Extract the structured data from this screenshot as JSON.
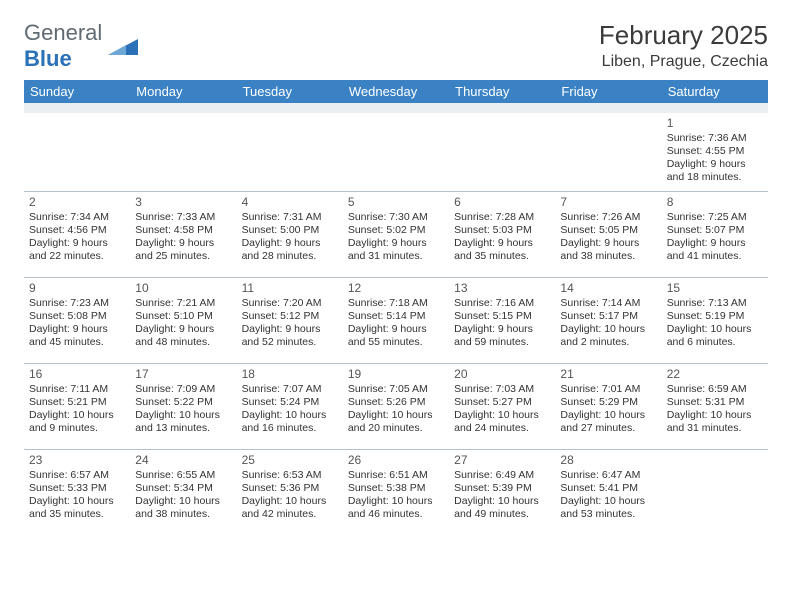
{
  "brand": {
    "first": "General",
    "second": "Blue"
  },
  "title": "February 2025",
  "location": "Liben, Prague, Czechia",
  "colors": {
    "header_bg": "#3a82c4",
    "header_text": "#ffffff",
    "grey_bar": "#eceff1",
    "border": "#b8c0c7",
    "text": "#333333",
    "brand_grey": "#5f6a72",
    "brand_blue": "#2a71b8"
  },
  "day_names": [
    "Sunday",
    "Monday",
    "Tuesday",
    "Wednesday",
    "Thursday",
    "Friday",
    "Saturday"
  ],
  "weeks": [
    [
      null,
      null,
      null,
      null,
      null,
      null,
      {
        "n": "1",
        "sunrise": "7:36 AM",
        "sunset": "4:55 PM",
        "daylight": "9 hours and 18 minutes."
      }
    ],
    [
      {
        "n": "2",
        "sunrise": "7:34 AM",
        "sunset": "4:56 PM",
        "daylight": "9 hours and 22 minutes."
      },
      {
        "n": "3",
        "sunrise": "7:33 AM",
        "sunset": "4:58 PM",
        "daylight": "9 hours and 25 minutes."
      },
      {
        "n": "4",
        "sunrise": "7:31 AM",
        "sunset": "5:00 PM",
        "daylight": "9 hours and 28 minutes."
      },
      {
        "n": "5",
        "sunrise": "7:30 AM",
        "sunset": "5:02 PM",
        "daylight": "9 hours and 31 minutes."
      },
      {
        "n": "6",
        "sunrise": "7:28 AM",
        "sunset": "5:03 PM",
        "daylight": "9 hours and 35 minutes."
      },
      {
        "n": "7",
        "sunrise": "7:26 AM",
        "sunset": "5:05 PM",
        "daylight": "9 hours and 38 minutes."
      },
      {
        "n": "8",
        "sunrise": "7:25 AM",
        "sunset": "5:07 PM",
        "daylight": "9 hours and 41 minutes."
      }
    ],
    [
      {
        "n": "9",
        "sunrise": "7:23 AM",
        "sunset": "5:08 PM",
        "daylight": "9 hours and 45 minutes."
      },
      {
        "n": "10",
        "sunrise": "7:21 AM",
        "sunset": "5:10 PM",
        "daylight": "9 hours and 48 minutes."
      },
      {
        "n": "11",
        "sunrise": "7:20 AM",
        "sunset": "5:12 PM",
        "daylight": "9 hours and 52 minutes."
      },
      {
        "n": "12",
        "sunrise": "7:18 AM",
        "sunset": "5:14 PM",
        "daylight": "9 hours and 55 minutes."
      },
      {
        "n": "13",
        "sunrise": "7:16 AM",
        "sunset": "5:15 PM",
        "daylight": "9 hours and 59 minutes."
      },
      {
        "n": "14",
        "sunrise": "7:14 AM",
        "sunset": "5:17 PM",
        "daylight": "10 hours and 2 minutes."
      },
      {
        "n": "15",
        "sunrise": "7:13 AM",
        "sunset": "5:19 PM",
        "daylight": "10 hours and 6 minutes."
      }
    ],
    [
      {
        "n": "16",
        "sunrise": "7:11 AM",
        "sunset": "5:21 PM",
        "daylight": "10 hours and 9 minutes."
      },
      {
        "n": "17",
        "sunrise": "7:09 AM",
        "sunset": "5:22 PM",
        "daylight": "10 hours and 13 minutes."
      },
      {
        "n": "18",
        "sunrise": "7:07 AM",
        "sunset": "5:24 PM",
        "daylight": "10 hours and 16 minutes."
      },
      {
        "n": "19",
        "sunrise": "7:05 AM",
        "sunset": "5:26 PM",
        "daylight": "10 hours and 20 minutes."
      },
      {
        "n": "20",
        "sunrise": "7:03 AM",
        "sunset": "5:27 PM",
        "daylight": "10 hours and 24 minutes."
      },
      {
        "n": "21",
        "sunrise": "7:01 AM",
        "sunset": "5:29 PM",
        "daylight": "10 hours and 27 minutes."
      },
      {
        "n": "22",
        "sunrise": "6:59 AM",
        "sunset": "5:31 PM",
        "daylight": "10 hours and 31 minutes."
      }
    ],
    [
      {
        "n": "23",
        "sunrise": "6:57 AM",
        "sunset": "5:33 PM",
        "daylight": "10 hours and 35 minutes."
      },
      {
        "n": "24",
        "sunrise": "6:55 AM",
        "sunset": "5:34 PM",
        "daylight": "10 hours and 38 minutes."
      },
      {
        "n": "25",
        "sunrise": "6:53 AM",
        "sunset": "5:36 PM",
        "daylight": "10 hours and 42 minutes."
      },
      {
        "n": "26",
        "sunrise": "6:51 AM",
        "sunset": "5:38 PM",
        "daylight": "10 hours and 46 minutes."
      },
      {
        "n": "27",
        "sunrise": "6:49 AM",
        "sunset": "5:39 PM",
        "daylight": "10 hours and 49 minutes."
      },
      {
        "n": "28",
        "sunrise": "6:47 AM",
        "sunset": "5:41 PM",
        "daylight": "10 hours and 53 minutes."
      },
      null
    ]
  ],
  "labels": {
    "sunrise": "Sunrise:",
    "sunset": "Sunset:",
    "daylight": "Daylight:"
  }
}
